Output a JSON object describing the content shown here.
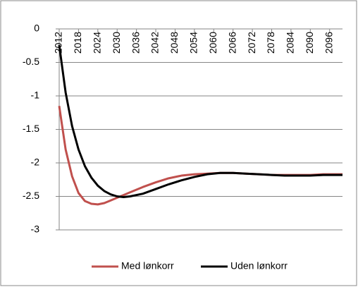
{
  "chart_data": {
    "type": "line",
    "x": [
      2012,
      2014,
      2016,
      2018,
      2020,
      2022,
      2024,
      2026,
      2028,
      2030,
      2032,
      2034,
      2038,
      2042,
      2046,
      2050,
      2054,
      2058,
      2062,
      2066,
      2070,
      2074,
      2078,
      2082,
      2086,
      2090,
      2094,
      2098,
      2100
    ],
    "series": [
      {
        "name": "Med lønkorr",
        "color": "#c0504d",
        "values": [
          -1.15,
          -1.8,
          -2.2,
          -2.45,
          -2.57,
          -2.61,
          -2.62,
          -2.6,
          -2.56,
          -2.52,
          -2.48,
          -2.44,
          -2.36,
          -2.29,
          -2.23,
          -2.19,
          -2.17,
          -2.16,
          -2.15,
          -2.15,
          -2.16,
          -2.17,
          -2.18,
          -2.18,
          -2.18,
          -2.18,
          -2.17,
          -2.17,
          -2.17
        ]
      },
      {
        "name": "Uden lønkorr",
        "color": "#000000",
        "values": [
          -0.24,
          -0.95,
          -1.45,
          -1.8,
          -2.05,
          -2.22,
          -2.34,
          -2.42,
          -2.47,
          -2.5,
          -2.51,
          -2.5,
          -2.46,
          -2.39,
          -2.32,
          -2.26,
          -2.21,
          -2.17,
          -2.15,
          -2.15,
          -2.16,
          -2.17,
          -2.18,
          -2.19,
          -2.19,
          -2.19,
          -2.18,
          -2.18,
          -2.18
        ]
      }
    ],
    "xlim": [
      2012,
      2100
    ],
    "xticks": [
      2012,
      2018,
      2024,
      2030,
      2036,
      2042,
      2048,
      2054,
      2060,
      2066,
      2072,
      2078,
      2084,
      2090,
      2096
    ],
    "ylim": [
      -3,
      0
    ],
    "yticks": [
      0,
      -0.5,
      -1,
      -1.5,
      -2,
      -2.5,
      -3
    ],
    "grid": true,
    "legend": "bottom"
  }
}
